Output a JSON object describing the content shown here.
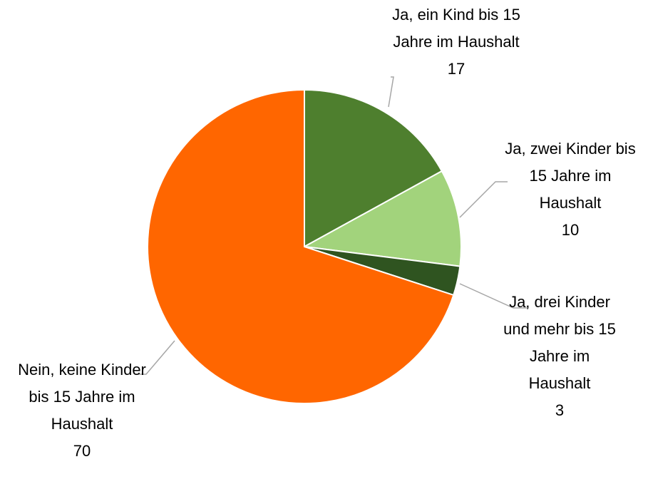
{
  "chart_data": {
    "type": "pie",
    "categories": [
      "Ja, ein Kind bis 15 Jahre im Haushalt",
      "Ja, zwei Kinder bis 15 Jahre im Haushalt",
      "Ja, drei Kinder und mehr bis 15 Jahre im Haushalt",
      "Nein, keine Kinder bis 15 Jahre im Haushalt"
    ],
    "values": [
      17,
      10,
      3,
      70
    ],
    "colors": [
      "#4e7f2e",
      "#a2d37c",
      "#2f5420",
      "#ff6600"
    ]
  }
}
